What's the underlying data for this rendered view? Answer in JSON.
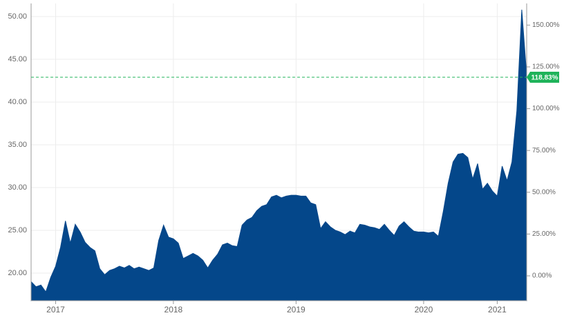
{
  "chart_data": {
    "type": "area",
    "x": [
      null,
      null,
      null,
      null,
      null,
      "2017",
      null,
      null,
      null,
      null,
      null,
      null,
      null,
      null,
      null,
      null,
      null,
      null,
      null,
      null,
      null,
      null,
      null,
      null,
      null,
      null,
      null,
      null,
      null,
      "2018",
      null,
      null,
      null,
      null,
      null,
      null,
      null,
      null,
      null,
      null,
      null,
      null,
      null,
      null,
      null,
      null,
      null,
      null,
      null,
      null,
      null,
      null,
      null,
      null,
      "2019",
      null,
      null,
      null,
      null,
      null,
      null,
      null,
      null,
      null,
      null,
      null,
      null,
      null,
      null,
      null,
      null,
      null,
      null,
      null,
      null,
      null,
      null,
      null,
      null,
      null,
      "2020",
      null,
      null,
      null,
      null,
      null,
      null,
      null,
      null,
      null,
      null,
      null,
      null,
      null,
      null,
      "2021",
      null,
      null,
      null,
      null,
      null,
      null
    ],
    "series": [
      {
        "color": "#04478a",
        "values": [
          19.0,
          18.4,
          18.6,
          17.8,
          19.5,
          20.8,
          23.0,
          26.1,
          23.5,
          25.7,
          24.8,
          23.6,
          23.0,
          22.6,
          20.5,
          19.8,
          20.3,
          20.5,
          20.8,
          20.6,
          20.9,
          20.5,
          20.7,
          20.5,
          20.3,
          20.6,
          23.8,
          25.6,
          24.2,
          24.0,
          23.5,
          21.7,
          22.0,
          22.3,
          22.0,
          21.5,
          20.6,
          21.5,
          22.2,
          23.3,
          23.5,
          23.2,
          23.1,
          25.6,
          26.2,
          26.5,
          27.3,
          27.8,
          28.0,
          28.9,
          29.1,
          28.8,
          29.0,
          29.1,
          29.1,
          29.0,
          29.0,
          28.2,
          28.0,
          25.2,
          26.0,
          25.4,
          25.0,
          24.8,
          24.5,
          24.9,
          24.7,
          25.7,
          25.6,
          25.4,
          25.3,
          25.1,
          25.7,
          25.0,
          24.4,
          25.5,
          26.0,
          25.4,
          24.9,
          24.8,
          24.8,
          24.7,
          24.8,
          24.3,
          27.2,
          30.5,
          33.0,
          33.9,
          34.0,
          33.5,
          31.0,
          32.8,
          29.8,
          30.5,
          29.6,
          29.0,
          32.5,
          30.8,
          33.0,
          39.0,
          50.8,
          43.1
        ]
      }
    ],
    "ylim": [
      16.77,
      51.53
    ],
    "yticks": [
      {
        "value": 20,
        "label": "20.00"
      },
      {
        "value": 25,
        "label": "25.00"
      },
      {
        "value": 30,
        "label": "30.00"
      },
      {
        "value": 35,
        "label": "35.00"
      },
      {
        "value": 40,
        "label": "40.00"
      },
      {
        "value": 45,
        "label": "45.00"
      },
      {
        "value": 50,
        "label": "50.00"
      }
    ],
    "y2lim": [
      -14.85,
      162.95
    ],
    "y2ticks": [
      {
        "value": 0,
        "label": "0.00%"
      },
      {
        "value": 25,
        "label": "25.00%"
      },
      {
        "value": 50,
        "label": "50.00%"
      },
      {
        "value": 75,
        "label": "75.00%"
      },
      {
        "value": 100,
        "label": "100.00%"
      },
      {
        "value": 125,
        "label": "125.00%"
      },
      {
        "value": 150,
        "label": "150.00%"
      }
    ],
    "reference_line": {
      "value": 118.83,
      "label": "118.83%",
      "axis": "y2",
      "color": "#1fb35a"
    },
    "grid": true
  }
}
